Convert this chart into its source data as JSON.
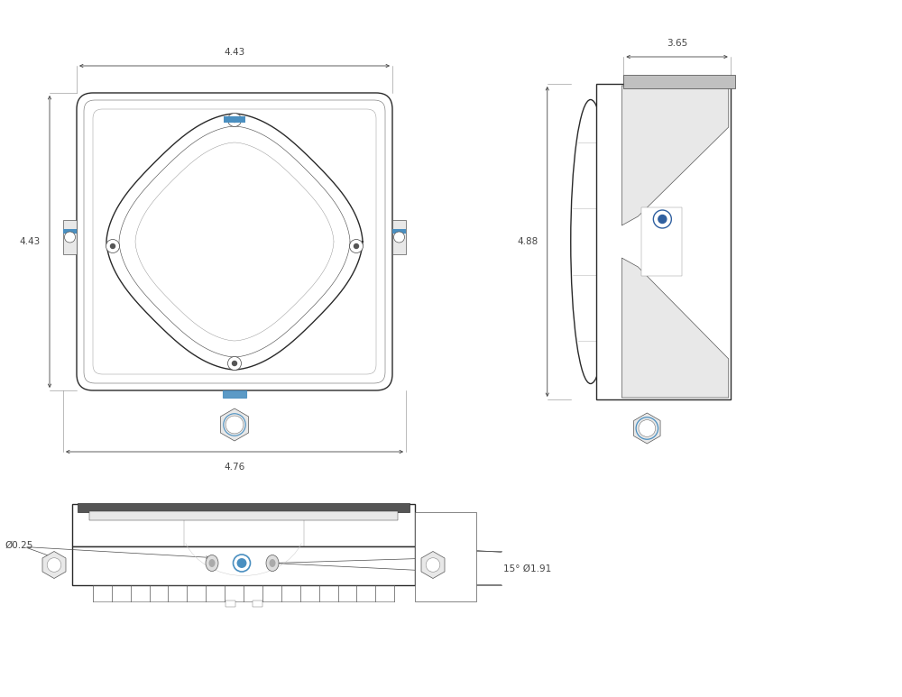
{
  "bg_color": "#ffffff",
  "line_color": "#2a2a2a",
  "dim_color": "#444444",
  "blue_color": "#4a8fc0",
  "gray_light": "#e8e8e8",
  "gray_mid": "#c0c0c0",
  "gray_dark": "#888888",
  "front_view": {
    "width_dim": "4.43",
    "height_dim": "4.43",
    "bottom_dim": "4.76"
  },
  "side_view": {
    "width_dim": "3.65",
    "height_dim": "4.88"
  },
  "bottom_view": {
    "hole_dim": "Ø0.25",
    "angle_dim": "15° Ø1.91"
  }
}
